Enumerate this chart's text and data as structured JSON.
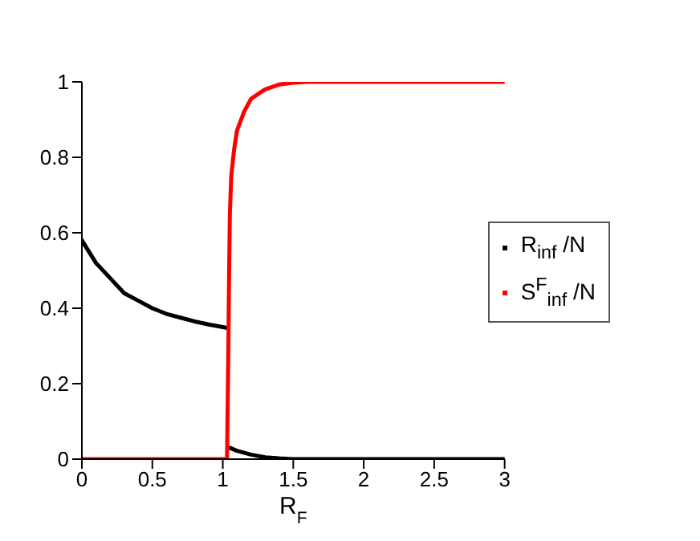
{
  "chart_data": {
    "type": "line",
    "xlabel": "R$_{F}$",
    "xlim": [
      0,
      3
    ],
    "xticks": [
      0,
      0.5,
      1,
      1.5,
      2,
      2.5,
      3
    ],
    "ylim": [
      0,
      1
    ],
    "yticks": [
      0,
      0.2,
      0.4,
      0.6,
      0.8,
      1
    ],
    "grid": false,
    "legend": "right",
    "marker": "none",
    "series": [
      {
        "name": "R$_{inf}$ /N",
        "color": "#000000",
        "x": [
          0,
          0.1,
          0.2,
          0.3,
          0.4,
          0.5,
          0.6,
          0.7,
          0.8,
          0.9,
          1,
          1.03,
          1.04,
          1.05,
          1.1,
          1.2,
          1.3,
          1.4,
          1.5,
          2,
          2.5,
          3
        ],
        "values": [
          0.58,
          0.52,
          0.48,
          0.44,
          0.42,
          0.4,
          0.385,
          0.375,
          0.365,
          0.357,
          0.35,
          0.348,
          null,
          0.03,
          0.022,
          0.012,
          0.005,
          0.002,
          0,
          0,
          0,
          0
        ]
      },
      {
        "name": "S$^{F}$$_{inf}$ /N",
        "color": "#ff0000",
        "x": [
          0,
          0.5,
          1,
          1.03,
          1.04,
          1.045,
          1.05,
          1.06,
          1.08,
          1.1,
          1.15,
          1.2,
          1.3,
          1.4,
          1.5,
          1.6,
          2,
          2.5,
          3
        ],
        "values": [
          0,
          0,
          0,
          0,
          0.31,
          0.5,
          0.65,
          0.75,
          0.82,
          0.87,
          0.92,
          0.955,
          0.98,
          0.993,
          0.998,
          1,
          1,
          1,
          1
        ]
      }
    ]
  }
}
